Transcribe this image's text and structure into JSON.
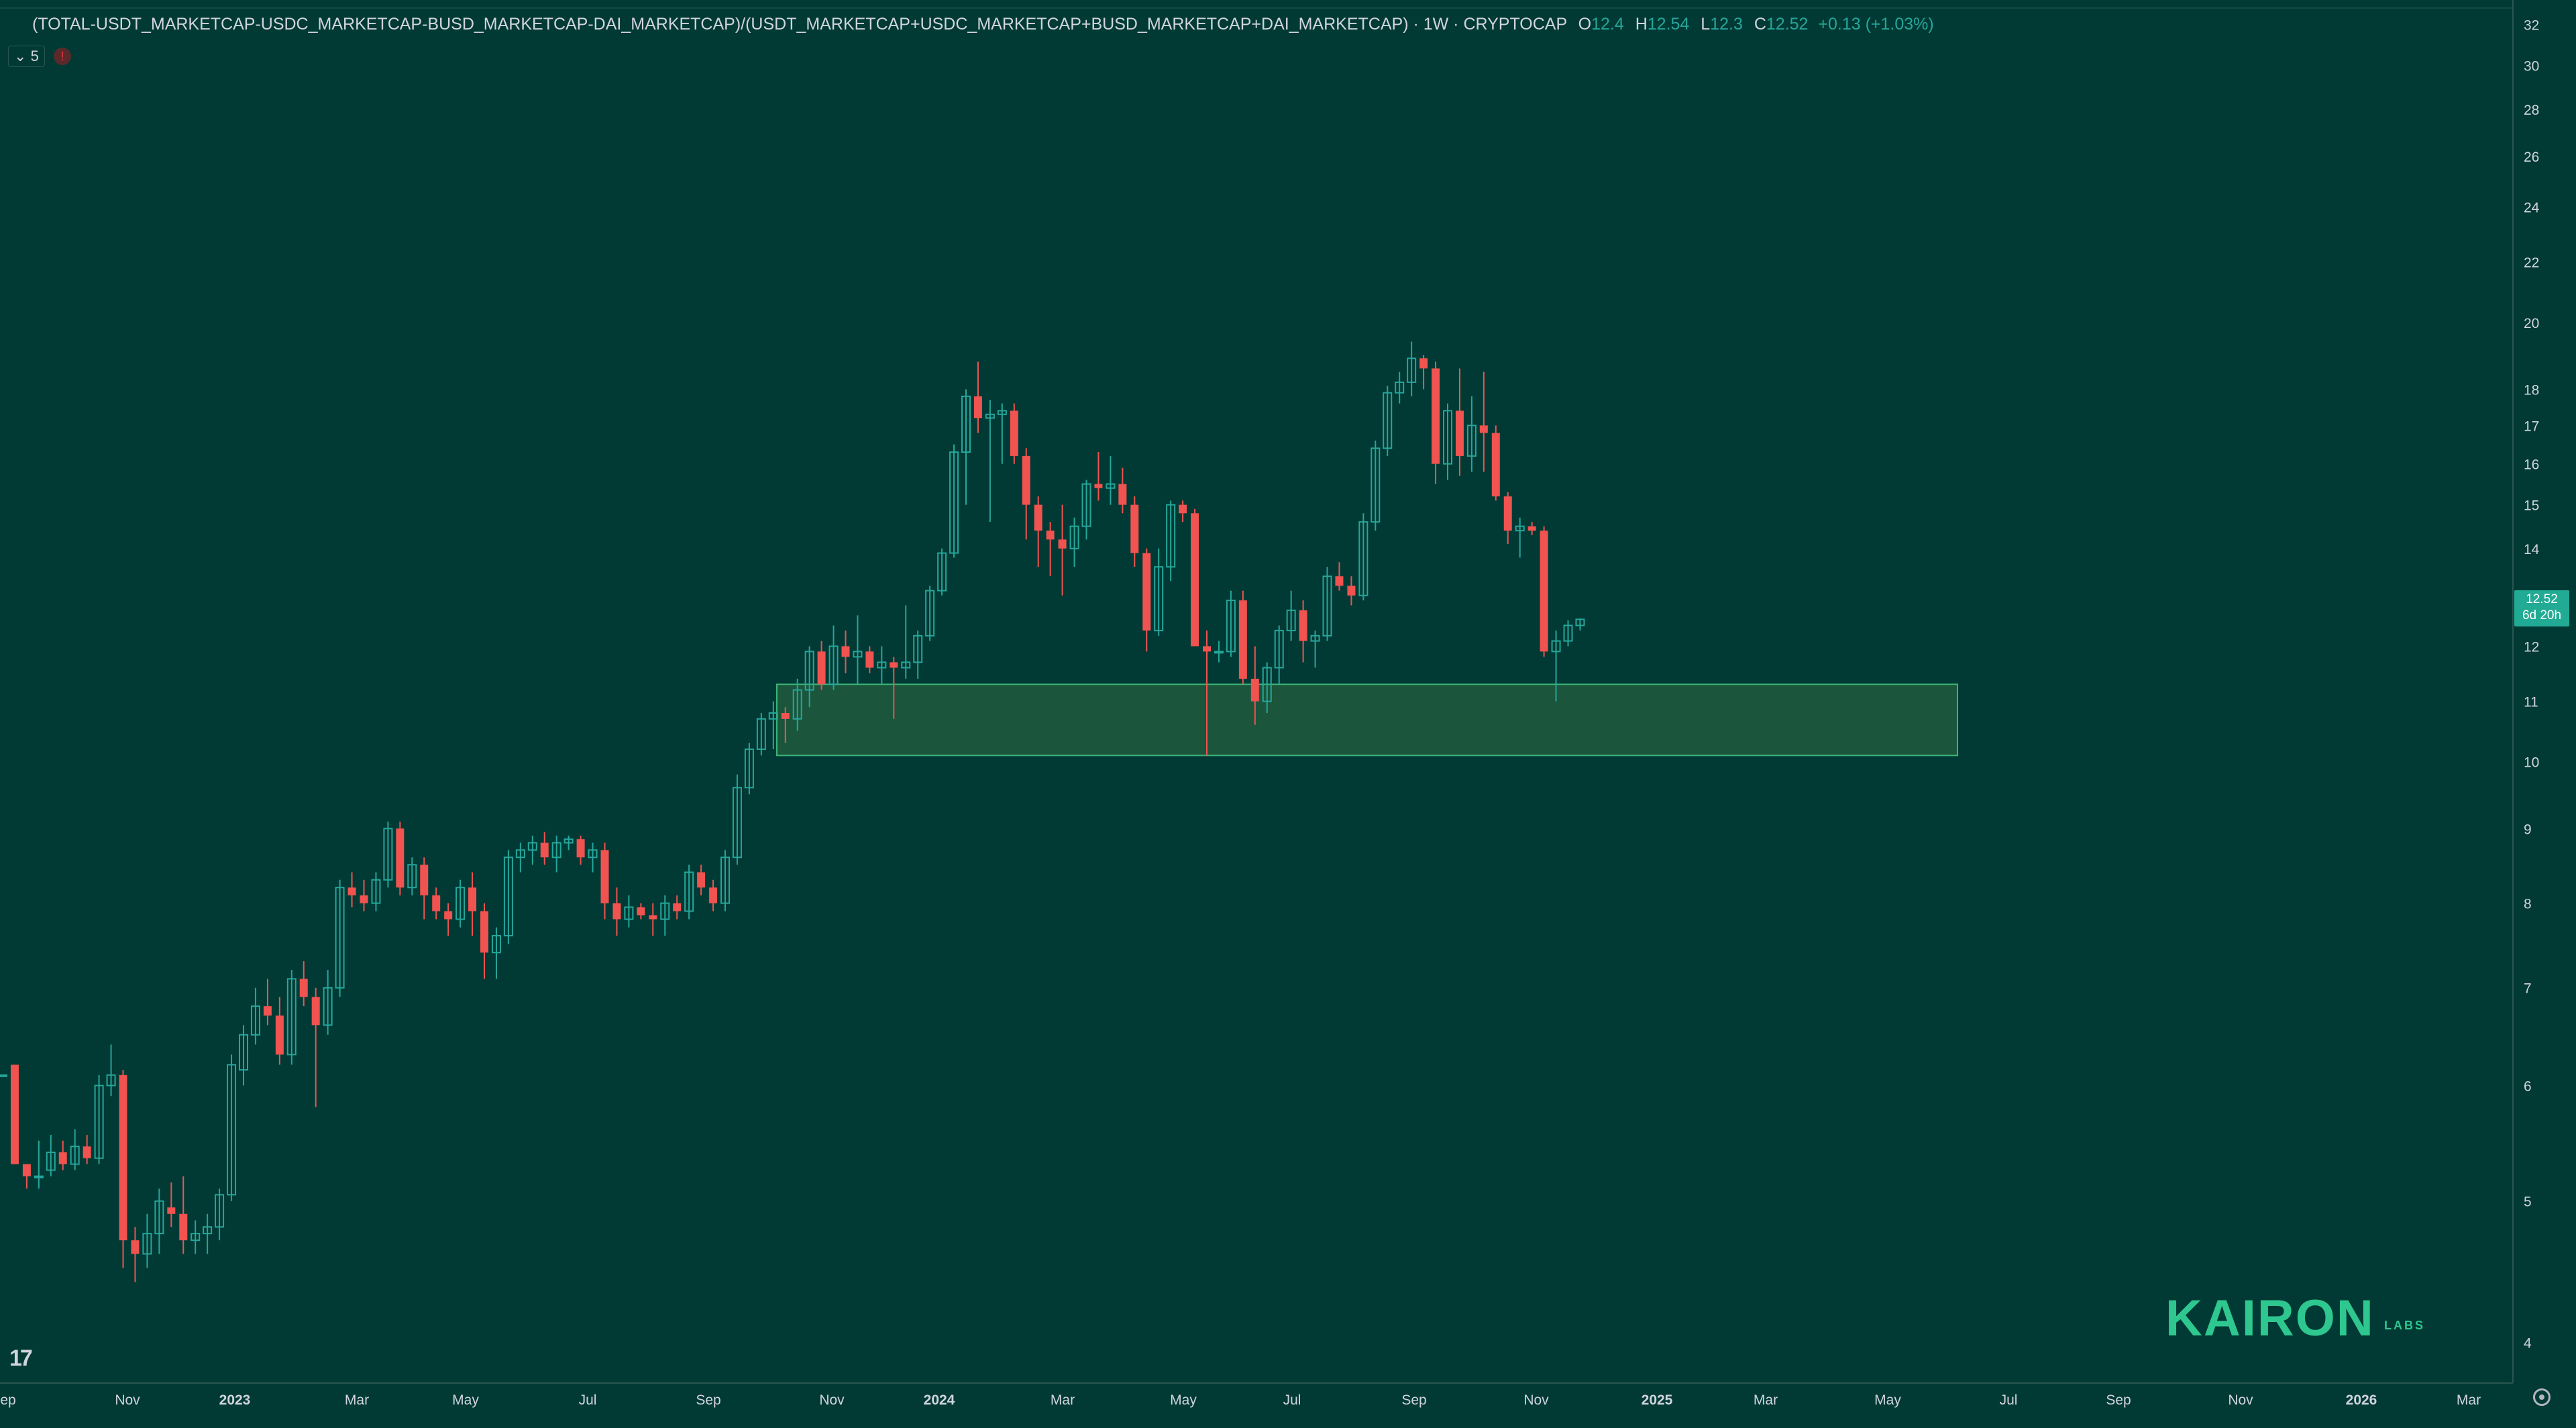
{
  "header": {
    "symbol": "(TOTAL-USDT_MARKETCAP-USDC_MARKETCAP-BUSD_MARKETCAP-DAI_MARKETCAP)/(USDT_MARKETCAP+USDC_MARKETCAP+BUSD_MARKETCAP+DAI_MARKETCAP) · 1W · CRYPTOCAP",
    "o_label": "O",
    "o_value": "12.4",
    "h_label": "H",
    "h_value": "12.54",
    "l_label": "L",
    "l_value": "12.3",
    "c_label": "C",
    "c_value": "12.52",
    "change": "+0.13 (+1.03%)"
  },
  "legend_toggle": "5",
  "alert_icon": "!",
  "last_price": {
    "price": "12.52",
    "countdown": "6d 20h"
  },
  "brand": {
    "name": "KAIRON",
    "sub": "LABS"
  },
  "colors": {
    "background": "#013a35",
    "up": "#26a69a",
    "down": "#f05350",
    "zone": "#1f5b3d",
    "zone_border": "#3cb478"
  },
  "chart_data": {
    "type": "candlestick",
    "interval": "1W",
    "y_scale": "log",
    "ylim": [
      3.8,
      32.5
    ],
    "y_ticks": [
      32,
      30,
      28,
      26,
      24,
      22,
      20,
      18,
      17,
      16,
      15,
      14,
      13,
      12,
      11,
      10,
      9,
      8,
      7,
      6,
      5,
      4
    ],
    "x_ticks": [
      "ep",
      "Nov",
      "2023",
      "Mar",
      "May",
      "Jul",
      "Sep",
      "Nov",
      "2024",
      "Mar",
      "May",
      "Jul",
      "Sep",
      "Nov",
      "2025",
      "Mar",
      "May",
      "Jul",
      "Sep",
      "Nov",
      "2026",
      "Mar"
    ],
    "support_zone": {
      "low": 10.1,
      "high": 11.3,
      "x_start": "2023-10-16",
      "x_end": "2025-06-16"
    },
    "candles": [
      [
        6.1,
        6.1,
        6.1,
        6.1
      ],
      [
        6.2,
        6.2,
        5.3,
        5.3
      ],
      [
        5.3,
        5.3,
        5.1,
        5.2
      ],
      [
        5.2,
        5.5,
        5.1,
        5.2
      ],
      [
        5.25,
        5.55,
        5.2,
        5.4
      ],
      [
        5.4,
        5.5,
        5.25,
        5.3
      ],
      [
        5.3,
        5.6,
        5.25,
        5.45
      ],
      [
        5.45,
        5.55,
        5.3,
        5.35
      ],
      [
        5.35,
        6.1,
        5.3,
        6.0
      ],
      [
        6.0,
        6.4,
        5.9,
        6.1
      ],
      [
        6.1,
        6.15,
        4.5,
        4.7
      ],
      [
        4.7,
        4.8,
        4.4,
        4.6
      ],
      [
        4.6,
        4.9,
        4.5,
        4.75
      ],
      [
        4.75,
        5.1,
        4.6,
        5.0
      ],
      [
        4.95,
        5.15,
        4.8,
        4.9
      ],
      [
        4.9,
        5.2,
        4.6,
        4.7
      ],
      [
        4.7,
        4.85,
        4.6,
        4.75
      ],
      [
        4.75,
        4.9,
        4.6,
        4.8
      ],
      [
        4.8,
        5.1,
        4.7,
        5.05
      ],
      [
        5.05,
        6.3,
        5.0,
        6.2
      ],
      [
        6.15,
        6.6,
        6.0,
        6.5
      ],
      [
        6.5,
        7.0,
        6.4,
        6.8
      ],
      [
        6.8,
        7.1,
        6.6,
        6.7
      ],
      [
        6.7,
        6.9,
        6.2,
        6.3
      ],
      [
        6.3,
        7.2,
        6.2,
        7.1
      ],
      [
        7.1,
        7.3,
        6.8,
        6.9
      ],
      [
        6.9,
        7.0,
        5.8,
        6.6
      ],
      [
        6.6,
        7.2,
        6.5,
        7.0
      ],
      [
        7.0,
        8.3,
        6.9,
        8.2
      ],
      [
        8.2,
        8.4,
        7.95,
        8.1
      ],
      [
        8.1,
        8.3,
        7.9,
        8.0
      ],
      [
        8.0,
        8.4,
        7.9,
        8.3
      ],
      [
        8.3,
        9.1,
        8.2,
        9.0
      ],
      [
        9.0,
        9.1,
        8.1,
        8.2
      ],
      [
        8.2,
        8.6,
        8.1,
        8.5
      ],
      [
        8.5,
        8.6,
        7.8,
        8.1
      ],
      [
        8.1,
        8.2,
        7.8,
        7.9
      ],
      [
        7.9,
        8.0,
        7.6,
        7.8
      ],
      [
        7.8,
        8.3,
        7.7,
        8.2
      ],
      [
        8.2,
        8.4,
        7.6,
        7.9
      ],
      [
        7.9,
        8.0,
        7.1,
        7.4
      ],
      [
        7.4,
        7.7,
        7.1,
        7.6
      ],
      [
        7.6,
        8.7,
        7.5,
        8.6
      ],
      [
        8.6,
        8.8,
        8.4,
        8.7
      ],
      [
        8.7,
        8.9,
        8.5,
        8.8
      ],
      [
        8.8,
        8.95,
        8.5,
        8.6
      ],
      [
        8.6,
        8.9,
        8.4,
        8.8
      ],
      [
        8.8,
        8.9,
        8.7,
        8.85
      ],
      [
        8.85,
        8.9,
        8.5,
        8.6
      ],
      [
        8.6,
        8.8,
        8.4,
        8.7
      ],
      [
        8.7,
        8.8,
        7.8,
        8.0
      ],
      [
        8.0,
        8.2,
        7.6,
        7.8
      ],
      [
        7.8,
        8.1,
        7.7,
        7.95
      ],
      [
        7.95,
        8.0,
        7.8,
        7.85
      ],
      [
        7.85,
        8.0,
        7.6,
        7.8
      ],
      [
        7.8,
        8.1,
        7.6,
        8.0
      ],
      [
        8.0,
        8.1,
        7.8,
        7.9
      ],
      [
        7.9,
        8.5,
        7.8,
        8.4
      ],
      [
        8.4,
        8.5,
        8.1,
        8.2
      ],
      [
        8.2,
        8.3,
        7.9,
        8.0
      ],
      [
        8.0,
        8.7,
        7.9,
        8.6
      ],
      [
        8.6,
        9.8,
        8.5,
        9.6
      ],
      [
        9.6,
        10.3,
        9.5,
        10.2
      ],
      [
        10.2,
        10.8,
        10.1,
        10.7
      ],
      [
        10.7,
        11.0,
        10.2,
        10.8
      ],
      [
        10.8,
        10.9,
        10.3,
        10.7
      ],
      [
        10.7,
        11.4,
        10.5,
        11.2
      ],
      [
        11.2,
        12.0,
        10.9,
        11.9
      ],
      [
        11.9,
        12.1,
        11.2,
        11.3
      ],
      [
        11.3,
        12.4,
        11.2,
        12.0
      ],
      [
        12.0,
        12.3,
        11.5,
        11.8
      ],
      [
        11.8,
        12.6,
        11.3,
        11.9
      ],
      [
        11.9,
        12.0,
        11.5,
        11.6
      ],
      [
        11.6,
        12.0,
        11.3,
        11.7
      ],
      [
        11.7,
        11.8,
        10.7,
        11.6
      ],
      [
        11.6,
        12.8,
        11.4,
        11.7
      ],
      [
        11.7,
        12.3,
        11.4,
        12.2
      ],
      [
        12.2,
        13.2,
        12.1,
        13.1
      ],
      [
        13.1,
        14.0,
        13.0,
        13.9
      ],
      [
        13.9,
        16.5,
        13.8,
        16.3
      ],
      [
        16.3,
        18.0,
        15.0,
        17.8
      ],
      [
        17.8,
        18.8,
        16.8,
        17.2
      ],
      [
        17.2,
        17.7,
        14.6,
        17.3
      ],
      [
        17.3,
        17.6,
        16.0,
        17.4
      ],
      [
        17.4,
        17.6,
        16.0,
        16.2
      ],
      [
        16.2,
        16.4,
        14.2,
        15.0
      ],
      [
        15.0,
        15.2,
        13.6,
        14.4
      ],
      [
        14.4,
        14.6,
        13.4,
        14.2
      ],
      [
        14.2,
        15.0,
        13.0,
        14.0
      ],
      [
        14.0,
        14.7,
        13.6,
        14.5
      ],
      [
        14.5,
        15.6,
        14.2,
        15.5
      ],
      [
        15.5,
        16.3,
        15.1,
        15.4
      ],
      [
        15.4,
        16.2,
        15.0,
        15.5
      ],
      [
        15.5,
        15.9,
        14.8,
        15.0
      ],
      [
        15.0,
        15.2,
        13.6,
        13.9
      ],
      [
        13.9,
        14.0,
        11.9,
        12.3
      ],
      [
        12.3,
        14.0,
        12.2,
        13.6
      ],
      [
        13.6,
        15.1,
        13.3,
        15.0
      ],
      [
        15.0,
        15.1,
        14.6,
        14.8
      ],
      [
        14.8,
        14.9,
        12.0,
        12.0
      ],
      [
        12.0,
        12.3,
        10.1,
        11.9
      ],
      [
        11.9,
        12.1,
        11.7,
        11.9
      ],
      [
        11.9,
        13.1,
        11.8,
        12.9
      ],
      [
        12.9,
        13.1,
        11.3,
        11.4
      ],
      [
        11.4,
        12.0,
        10.6,
        11.0
      ],
      [
        11.0,
        11.7,
        10.8,
        11.6
      ],
      [
        11.6,
        12.4,
        11.3,
        12.3
      ],
      [
        12.3,
        13.1,
        12.1,
        12.7
      ],
      [
        12.7,
        12.9,
        11.7,
        12.1
      ],
      [
        12.1,
        12.3,
        11.6,
        12.2
      ],
      [
        12.2,
        13.6,
        12.1,
        13.4
      ],
      [
        13.4,
        13.7,
        13.1,
        13.2
      ],
      [
        13.2,
        13.4,
        12.8,
        13.0
      ],
      [
        13.0,
        14.8,
        12.9,
        14.6
      ],
      [
        14.6,
        16.6,
        14.4,
        16.4
      ],
      [
        16.4,
        18.1,
        16.2,
        17.9
      ],
      [
        17.9,
        18.5,
        17.6,
        18.2
      ],
      [
        18.2,
        19.4,
        17.8,
        18.9
      ],
      [
        18.9,
        19.0,
        18.0,
        18.6
      ],
      [
        18.6,
        18.8,
        15.5,
        16.0
      ],
      [
        16.0,
        17.6,
        15.6,
        17.4
      ],
      [
        17.4,
        18.6,
        15.7,
        16.2
      ],
      [
        16.2,
        17.8,
        15.8,
        17.0
      ],
      [
        17.0,
        18.5,
        15.8,
        16.8
      ],
      [
        16.8,
        17.0,
        15.1,
        15.2
      ],
      [
        15.2,
        15.3,
        14.1,
        14.4
      ],
      [
        14.4,
        14.7,
        13.8,
        14.5
      ],
      [
        14.5,
        14.6,
        14.3,
        14.4
      ],
      [
        14.4,
        14.5,
        11.8,
        11.9
      ],
      [
        11.9,
        12.3,
        11.0,
        12.1
      ],
      [
        12.1,
        12.5,
        12.0,
        12.4
      ],
      [
        12.4,
        12.54,
        12.3,
        12.52
      ]
    ]
  }
}
